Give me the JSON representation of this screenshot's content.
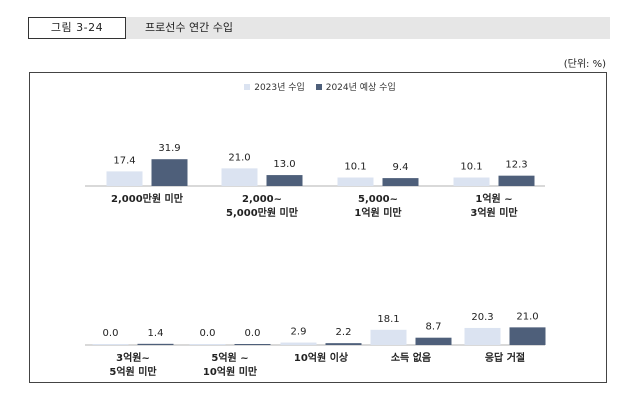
{
  "header": {
    "figure_number": "그림 3-24",
    "title": "프로선수 연간 수입"
  },
  "unit_label": "(단위: %)",
  "colors": {
    "series_2023": "#dbe3f1",
    "series_2024": "#4e5f7a",
    "axis": "#b3b3b3"
  },
  "chart_data": {
    "type": "bar",
    "title": "프로선수 연간 수입",
    "unit": "%",
    "ylim": [
      0,
      40
    ],
    "legend_position": "top-center",
    "series": [
      {
        "name": "2023년 수입",
        "values": [
          17.4,
          21.0,
          10.1,
          10.1,
          0.0,
          0.0,
          2.9,
          18.1,
          20.3
        ]
      },
      {
        "name": "2024년 예상 수입",
        "values": [
          31.9,
          13.0,
          9.4,
          12.3,
          1.4,
          0.0,
          2.2,
          8.7,
          21.0
        ]
      }
    ],
    "categories": [
      [
        "2,000만원 미만"
      ],
      [
        "2,000~",
        "5,000만원 미만"
      ],
      [
        "5,000~",
        "1억원 미만"
      ],
      [
        "1억원 ~",
        "3억원 미만"
      ],
      [
        "3억원~",
        "5억원 미만"
      ],
      [
        "5억원 ~",
        "10억원 미만"
      ],
      [
        "10억원 이상"
      ],
      [
        "소득 없음"
      ],
      [
        "응답 거절"
      ]
    ],
    "value_labels": [
      [
        "17.4",
        "31.9"
      ],
      [
        "21.0",
        "13.0"
      ],
      [
        "10.1",
        "9.4"
      ],
      [
        "10.1",
        "12.3"
      ],
      [
        "0.0",
        "1.4"
      ],
      [
        "0.0",
        "0.0"
      ],
      [
        "2.9",
        "2.2"
      ],
      [
        "18.1",
        "8.7"
      ],
      [
        "20.3",
        "21.0"
      ]
    ]
  }
}
